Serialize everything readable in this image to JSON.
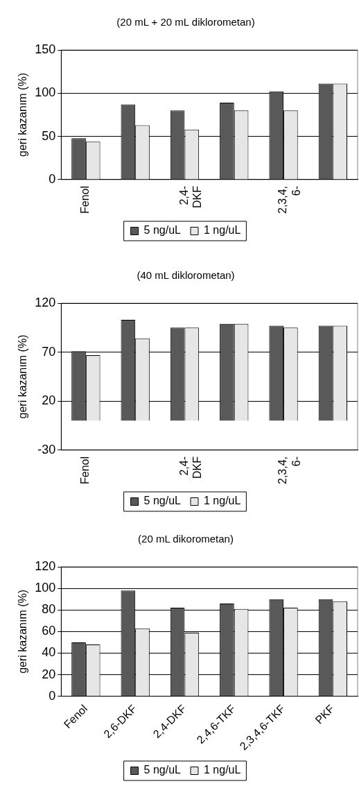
{
  "chart_data": [
    {
      "type": "bar",
      "title": "(20 mL + 20 mL diklorometan)",
      "ylabel": "geri kazanım (%)",
      "categories": [
        "Fenol",
        null,
        "2,4- DKF",
        null,
        "2,3,4, 6-",
        null
      ],
      "series": [
        {
          "name": "5 ng/uL",
          "color": "#595959",
          "values": [
            48,
            87,
            80,
            89,
            102,
            111
          ]
        },
        {
          "name": "1 ng/uL",
          "color": "#e6e6e6",
          "values": [
            44,
            63,
            58,
            80,
            80,
            111
          ]
        }
      ],
      "ylim": [
        0,
        150
      ],
      "yticks": [
        0,
        50,
        100,
        150
      ],
      "grid": "y",
      "legend": "bottom"
    },
    {
      "type": "bar",
      "title": "(40 mL diklorometan)",
      "ylabel": "geri kazanım (%)",
      "categories": [
        "Fenol",
        null,
        "2,4- DKF",
        null,
        "2,3,4, 6-",
        null
      ],
      "series": [
        {
          "name": "5 ng/uL",
          "color": "#595959",
          "values": [
            71,
            103,
            95,
            99,
            97,
            97
          ]
        },
        {
          "name": "1 ng/uL",
          "color": "#e6e6e6",
          "values": [
            67,
            84,
            95,
            99,
            95,
            97
          ]
        }
      ],
      "ylim": [
        -30,
        120
      ],
      "yticks": [
        -30,
        20,
        70,
        120
      ],
      "grid": "y",
      "legend": "bottom"
    },
    {
      "type": "bar",
      "title": "(20 mL dikorometan)",
      "ylabel": "geri kazanım (%)",
      "categories": [
        "Fenol",
        "2,6-DKF",
        "2,4-DKF",
        "2,4,6-TKF",
        "2,3,4,6-TKF",
        "PKF"
      ],
      "series": [
        {
          "name": "5 ng/uL",
          "color": "#595959",
          "values": [
            50,
            98,
            82,
            86,
            90,
            90
          ]
        },
        {
          "name": "1 ng/uL",
          "color": "#e6e6e6",
          "values": [
            48,
            63,
            59,
            81,
            82,
            88
          ]
        }
      ],
      "ylim": [
        0,
        120
      ],
      "yticks": [
        0,
        20,
        40,
        60,
        80,
        100,
        120
      ],
      "grid": "y",
      "legend": "bottom"
    }
  ]
}
